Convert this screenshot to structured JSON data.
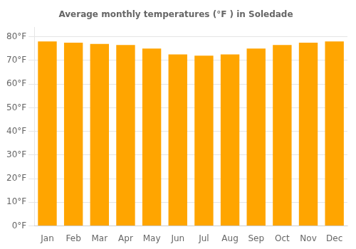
{
  "chart_data": {
    "type": "bar",
    "title": "Average monthly temperatures (°F ) in Soledade",
    "categories": [
      "Jan",
      "Feb",
      "Mar",
      "Apr",
      "May",
      "Jun",
      "Jul",
      "Aug",
      "Sep",
      "Oct",
      "Nov",
      "Dec"
    ],
    "values": [
      78.0,
      77.5,
      77.0,
      76.5,
      75.0,
      72.5,
      72.0,
      72.5,
      75.0,
      76.5,
      77.5,
      78.0
    ],
    "color": "#FFA500",
    "ylim": [
      0,
      84
    ],
    "yticks": [
      {
        "value": 0,
        "label": "0°F"
      },
      {
        "value": 10,
        "label": "10°F"
      },
      {
        "value": 20,
        "label": "20°F"
      },
      {
        "value": 30,
        "label": "30°F"
      },
      {
        "value": 40,
        "label": "40°F"
      },
      {
        "value": 50,
        "label": "50°F"
      },
      {
        "value": 60,
        "label": "60°F"
      },
      {
        "value": 70,
        "label": "70°F"
      },
      {
        "value": 80,
        "label": "80°F"
      }
    ],
    "grid": true
  }
}
